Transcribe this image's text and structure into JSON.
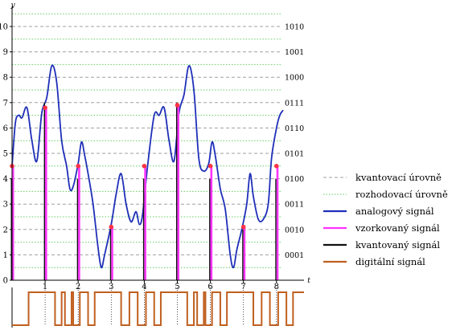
{
  "chart_data": {
    "type": "line",
    "title": "",
    "xlabel": "t",
    "ylabel": "y",
    "xlim": [
      0,
      9.1
    ],
    "ylim": [
      0,
      10.5
    ],
    "grid": false,
    "x_ticks": [
      "1",
      "2",
      "3",
      "4",
      "5",
      "6",
      "7",
      "8"
    ],
    "y_ticks": [
      "0",
      "1",
      "2",
      "3",
      "4",
      "5",
      "6",
      "7",
      "8",
      "9",
      "10"
    ],
    "quant_levels": [
      0,
      1,
      2,
      3,
      4,
      5,
      6,
      7,
      8,
      9,
      10
    ],
    "decision_levels": [
      0.5,
      1.5,
      2.5,
      3.5,
      4.5,
      5.5,
      6.5,
      7.5,
      8.5,
      9.5,
      10.5
    ],
    "codes": [
      {
        "y": 10,
        "label": "1010"
      },
      {
        "y": 9,
        "label": "1001"
      },
      {
        "y": 8,
        "label": "1000"
      },
      {
        "y": 7,
        "label": "0111"
      },
      {
        "y": 6,
        "label": "0110"
      },
      {
        "y": 5,
        "label": "0101"
      },
      {
        "y": 4,
        "label": "0100"
      },
      {
        "y": 3,
        "label": "0011"
      },
      {
        "y": 2,
        "label": "0010"
      },
      {
        "y": 1,
        "label": "0001"
      }
    ],
    "series": [
      {
        "name": "analogový signál",
        "x": [
          0,
          0.1,
          0.2,
          0.3,
          0.45,
          0.6,
          0.75,
          0.9,
          1.05,
          1.2,
          1.35,
          1.5,
          1.65,
          1.75,
          1.85,
          2,
          2.1,
          2.2,
          2.3,
          2.45,
          2.6,
          2.7,
          2.8,
          3.0,
          3.15,
          3.3,
          3.45,
          3.6,
          3.75,
          3.85,
          3.95,
          4.1,
          4.3,
          4.45,
          4.6,
          4.75,
          4.9,
          5.05,
          5.2,
          5.35,
          5.5,
          5.65,
          5.8,
          5.95,
          6.05,
          6.15,
          6.3,
          6.45,
          6.6,
          6.7,
          6.8,
          6.95,
          7.1,
          7.2,
          7.3,
          7.45,
          7.6,
          7.75,
          7.85,
          8.0,
          8.1,
          8.2
        ],
        "values": [
          4.5,
          6.2,
          6.5,
          6.4,
          6.8,
          5.5,
          4.7,
          6.6,
          7.2,
          8.45,
          7.8,
          5.5,
          4.5,
          3.6,
          3.7,
          4.6,
          5.45,
          4.9,
          4.2,
          3.0,
          1.3,
          0.5,
          1.0,
          2.2,
          3.4,
          4.2,
          3.0,
          2.3,
          2.7,
          2.2,
          2.6,
          4.5,
          6.5,
          6.5,
          6.8,
          5.5,
          4.7,
          6.6,
          7.3,
          8.45,
          7.5,
          4.8,
          4.3,
          4.6,
          5.45,
          4.9,
          3.6,
          2.8,
          1.0,
          0.5,
          1.2,
          2.0,
          3.0,
          4.2,
          3.3,
          2.4,
          2.4,
          3.0,
          4.8,
          6.0,
          6.5,
          6.7
        ]
      },
      {
        "name": "vzorkovaný signál",
        "x": [
          0,
          1,
          2,
          3,
          4,
          5,
          6,
          7,
          8
        ],
        "values": [
          4.5,
          6.8,
          4.5,
          2.1,
          4.5,
          6.9,
          4.5,
          2.1,
          4.5
        ]
      },
      {
        "name": "kvantovaný signál",
        "x": [
          0,
          1,
          2,
          3,
          4,
          5,
          6,
          7,
          8
        ],
        "values": [
          4,
          7,
          4,
          2,
          4,
          7,
          4,
          2,
          4
        ]
      },
      {
        "name": "digitální signál",
        "x": [
          0.3,
          0.5,
          1.3,
          1.5,
          1.6,
          1.8,
          1.85,
          2.05,
          2.3,
          2.5,
          3.3,
          3.55,
          3.8,
          4.05,
          4.3,
          4.5,
          5.3,
          5.5,
          5.6,
          5.8,
          5.85,
          6.05,
          6.3,
          6.5,
          7.3,
          7.55,
          7.8,
          8.05,
          8.3,
          8.5
        ],
        "values": [
          0,
          1,
          0,
          1,
          0,
          1,
          0,
          1,
          0,
          1,
          0,
          1,
          0,
          1,
          0,
          1,
          0,
          1,
          0,
          1,
          0,
          1,
          0,
          1,
          0,
          1,
          0,
          1,
          0,
          1
        ]
      }
    ],
    "legend": [
      {
        "label": "kvantovací úrovně",
        "color": "#a0a0a0",
        "dash": "dashed"
      },
      {
        "label": "rozhodovací úrovně",
        "color": "#66cc66",
        "dash": "dotted"
      },
      {
        "label": "analogový signál",
        "color": "#1f2fb8",
        "dash": "solid"
      },
      {
        "label": "vzorkovaný signál",
        "color": "#ff33ff",
        "dash": "solid"
      },
      {
        "label": "kvantovaný signál",
        "color": "#111111",
        "dash": "solid"
      },
      {
        "label": "digitální signál",
        "color": "#c06020",
        "dash": "solid"
      }
    ],
    "legend_position": "right",
    "colors": {
      "analog": "#1f2fb8",
      "sampled": "#ff33ff",
      "quantized": "#111111",
      "digital": "#c06020",
      "sample_point": "#ff3344",
      "quant_level": "#a0a0a0",
      "decision_level": "#66cc66"
    }
  }
}
